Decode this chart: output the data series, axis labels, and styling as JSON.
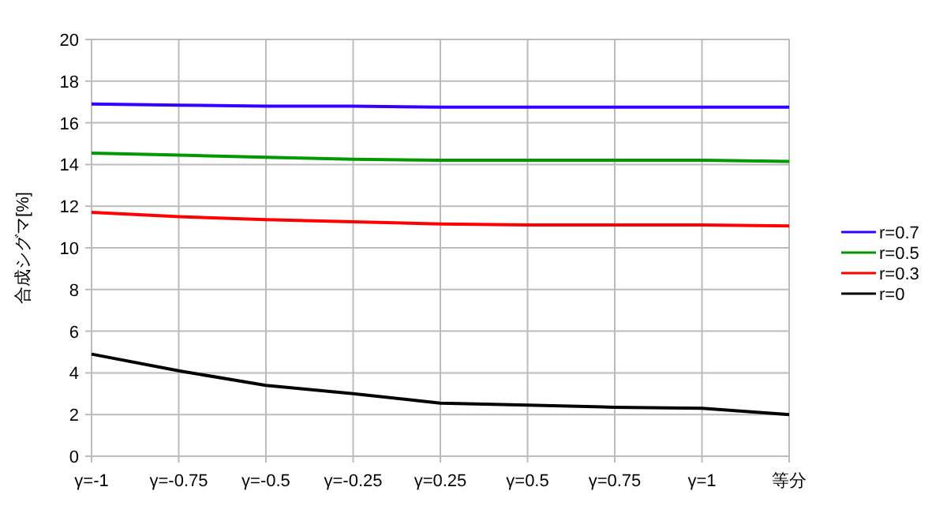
{
  "chart_data": {
    "type": "line",
    "ylabel": "合成シグマ[%]",
    "categories": [
      "γ=-1",
      "γ=-0.75",
      "γ=-0.5",
      "γ=-0.25",
      "γ=0.25",
      "γ=0.5",
      "γ=0.75",
      "γ=1",
      "等分"
    ],
    "ylim": [
      0,
      20
    ],
    "yticks": [
      0,
      2,
      4,
      6,
      8,
      10,
      12,
      14,
      16,
      18,
      20
    ],
    "grid": true,
    "legend": "right",
    "marker": "none",
    "series": [
      {
        "name": "r=0.7",
        "color": "#3300ff",
        "values": [
          16.9,
          16.85,
          16.8,
          16.8,
          16.75,
          16.75,
          16.75,
          16.75,
          16.75
        ]
      },
      {
        "name": "r=0.5",
        "color": "#009900",
        "values": [
          14.55,
          14.45,
          14.35,
          14.25,
          14.2,
          14.2,
          14.2,
          14.2,
          14.15
        ]
      },
      {
        "name": "r=0.3",
        "color": "#ff0000",
        "values": [
          11.7,
          11.5,
          11.35,
          11.25,
          11.15,
          11.1,
          11.1,
          11.1,
          11.05
        ]
      },
      {
        "name": "r=0",
        "color": "#000000",
        "values": [
          4.9,
          4.1,
          3.4,
          3.0,
          2.55,
          2.45,
          2.35,
          2.3,
          2.0
        ]
      }
    ]
  }
}
